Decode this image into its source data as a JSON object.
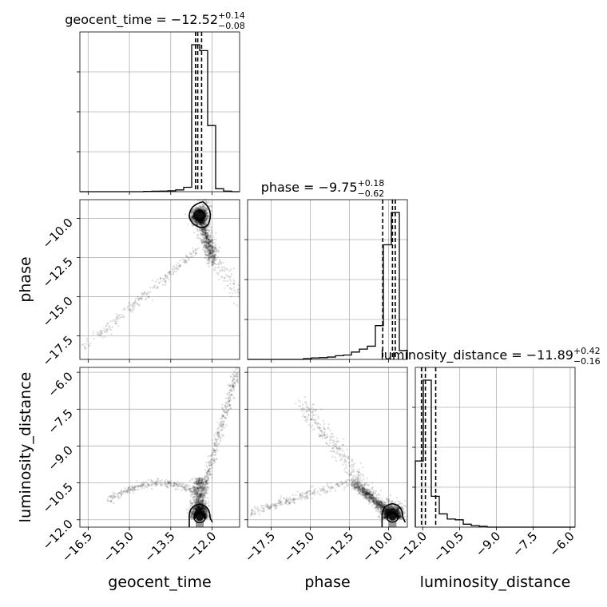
{
  "chart_data": {
    "type": "corner",
    "grid": true,
    "parameters": [
      {
        "name": "geocent_time",
        "title_label": "geocent_time",
        "median": "−12.52",
        "plus": "+0.14",
        "minus": "−0.08",
        "range": [
          -16.8,
          -11.0
        ],
        "ticks": [
          -16.5,
          -15.0,
          -13.5,
          -12.0
        ],
        "tick_labels": [
          "−16.5",
          "−15.0",
          "−13.5",
          "−12.0"
        ],
        "quantiles": [
          -12.6,
          -12.52,
          -12.38
        ],
        "hist_edges": [
          -16.8,
          -16.51,
          -16.22,
          -15.93,
          -15.64,
          -15.35,
          -15.06,
          -14.77,
          -14.48,
          -14.19,
          -13.9,
          -13.61,
          -13.32,
          -13.03,
          -12.74,
          -12.45,
          -12.16,
          -11.87,
          -11.58,
          -11.29,
          -11.0
        ],
        "hist_counts": [
          0,
          0,
          0,
          0,
          0,
          0,
          0,
          0,
          0.002,
          0.003,
          0.004,
          0.006,
          0.012,
          0.03,
          1.0,
          0.96,
          0.45,
          0.02,
          0.004,
          0
        ]
      },
      {
        "name": "phase",
        "title_label": "phase",
        "median": "−9.75",
        "plus": "+0.18",
        "minus": "−0.62",
        "range": [
          -19.0,
          -8.8
        ],
        "ticks": [
          -17.5,
          -15.0,
          -12.5,
          -10.0
        ],
        "tick_labels": [
          "−17.5",
          "−15.0",
          "−12.5",
          "−10.0"
        ],
        "quantiles": [
          -10.37,
          -9.75,
          -9.57
        ],
        "hist_edges": [
          -19.0,
          -18.49,
          -17.98,
          -17.47,
          -16.96,
          -16.45,
          -15.94,
          -15.43,
          -14.92,
          -14.41,
          -13.9,
          -13.39,
          -12.88,
          -12.37,
          -11.86,
          -11.35,
          -10.84,
          -10.33,
          -9.82,
          -9.31,
          -8.8
        ],
        "hist_counts": [
          0,
          0,
          0,
          0,
          0,
          0,
          0,
          0.005,
          0.01,
          0.012,
          0.016,
          0.025,
          0.03,
          0.05,
          0.07,
          0.09,
          0.23,
          0.78,
          1.0,
          0.06
        ]
      },
      {
        "name": "luminosity_distance",
        "title_label": "luminosity_distance",
        "median": "−11.89",
        "plus": "+0.42",
        "minus": "−0.16",
        "range": [
          -12.3,
          -5.8
        ],
        "ticks": [
          -12.0,
          -10.5,
          -9.0,
          -7.5,
          -6.0
        ],
        "tick_labels": [
          "−12.0",
          "−10.5",
          "−9.0",
          "−7.5",
          "−6.0"
        ],
        "quantiles": [
          -12.05,
          -11.89,
          -11.47
        ],
        "hist_edges": [
          -12.3,
          -11.975,
          -11.65,
          -11.325,
          -11.0,
          -10.675,
          -10.35,
          -10.025,
          -9.7,
          -9.375,
          -9.05,
          -8.725,
          -8.4,
          -8.075,
          -7.75,
          -7.425,
          -7.1,
          -6.775,
          -6.45,
          -6.125,
          -5.8
        ],
        "hist_counts": [
          0.45,
          1.0,
          0.21,
          0.09,
          0.055,
          0.05,
          0.02,
          0.01,
          0.005,
          0,
          0,
          0,
          0,
          0,
          0,
          0,
          0,
          0,
          0,
          0
        ]
      }
    ],
    "panels": [
      {
        "x": "geocent_time",
        "y": "phase",
        "mode": [
          -12.45,
          -9.8
        ]
      },
      {
        "x": "geocent_time",
        "y": "luminosity_distance",
        "mode": [
          -12.45,
          -11.92
        ]
      },
      {
        "x": "phase",
        "y": "luminosity_distance",
        "mode": [
          -9.75,
          -11.9
        ]
      }
    ]
  }
}
